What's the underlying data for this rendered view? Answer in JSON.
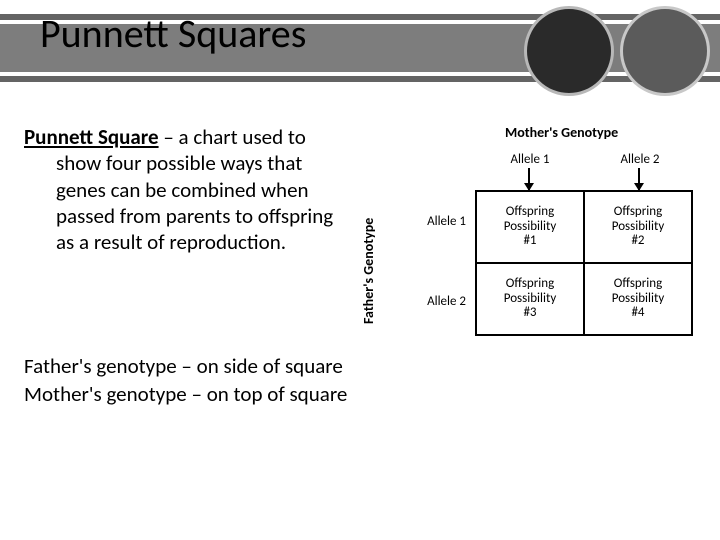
{
  "title": "Punnett Squares",
  "definition": {
    "term": "Punnett Square",
    "rest_first": " – a chart used to",
    "rest_cont": "show four possible ways that genes can be combined when passed from parents to offspring as a result of reproduction."
  },
  "notes": {
    "line1": "Father's genotype – on side of square",
    "line2": "Mother's genotype – on top of square"
  },
  "punnett": {
    "mother_label": "Mother's Genotype",
    "father_label": "Father's Genotype",
    "col1": "Allele 1",
    "col2": "Allele 2",
    "row1": "Allele 1",
    "row2": "Allele 2",
    "cells": {
      "c11a": "Offspring",
      "c11b": "Possibility",
      "c11c": "#1",
      "c12a": "Offspring",
      "c12b": "Possibility",
      "c12c": "#2",
      "c21a": "Offspring",
      "c21b": "Possibility",
      "c21c": "#3",
      "c22a": "Offspring",
      "c22b": "Possibility",
      "c22c": "#4"
    }
  },
  "colors": {
    "band_outer": "#646464",
    "band_inner": "#7d7d7d",
    "circle_dark": "#2a2a2a",
    "circle_light": "#5b5b5b"
  }
}
